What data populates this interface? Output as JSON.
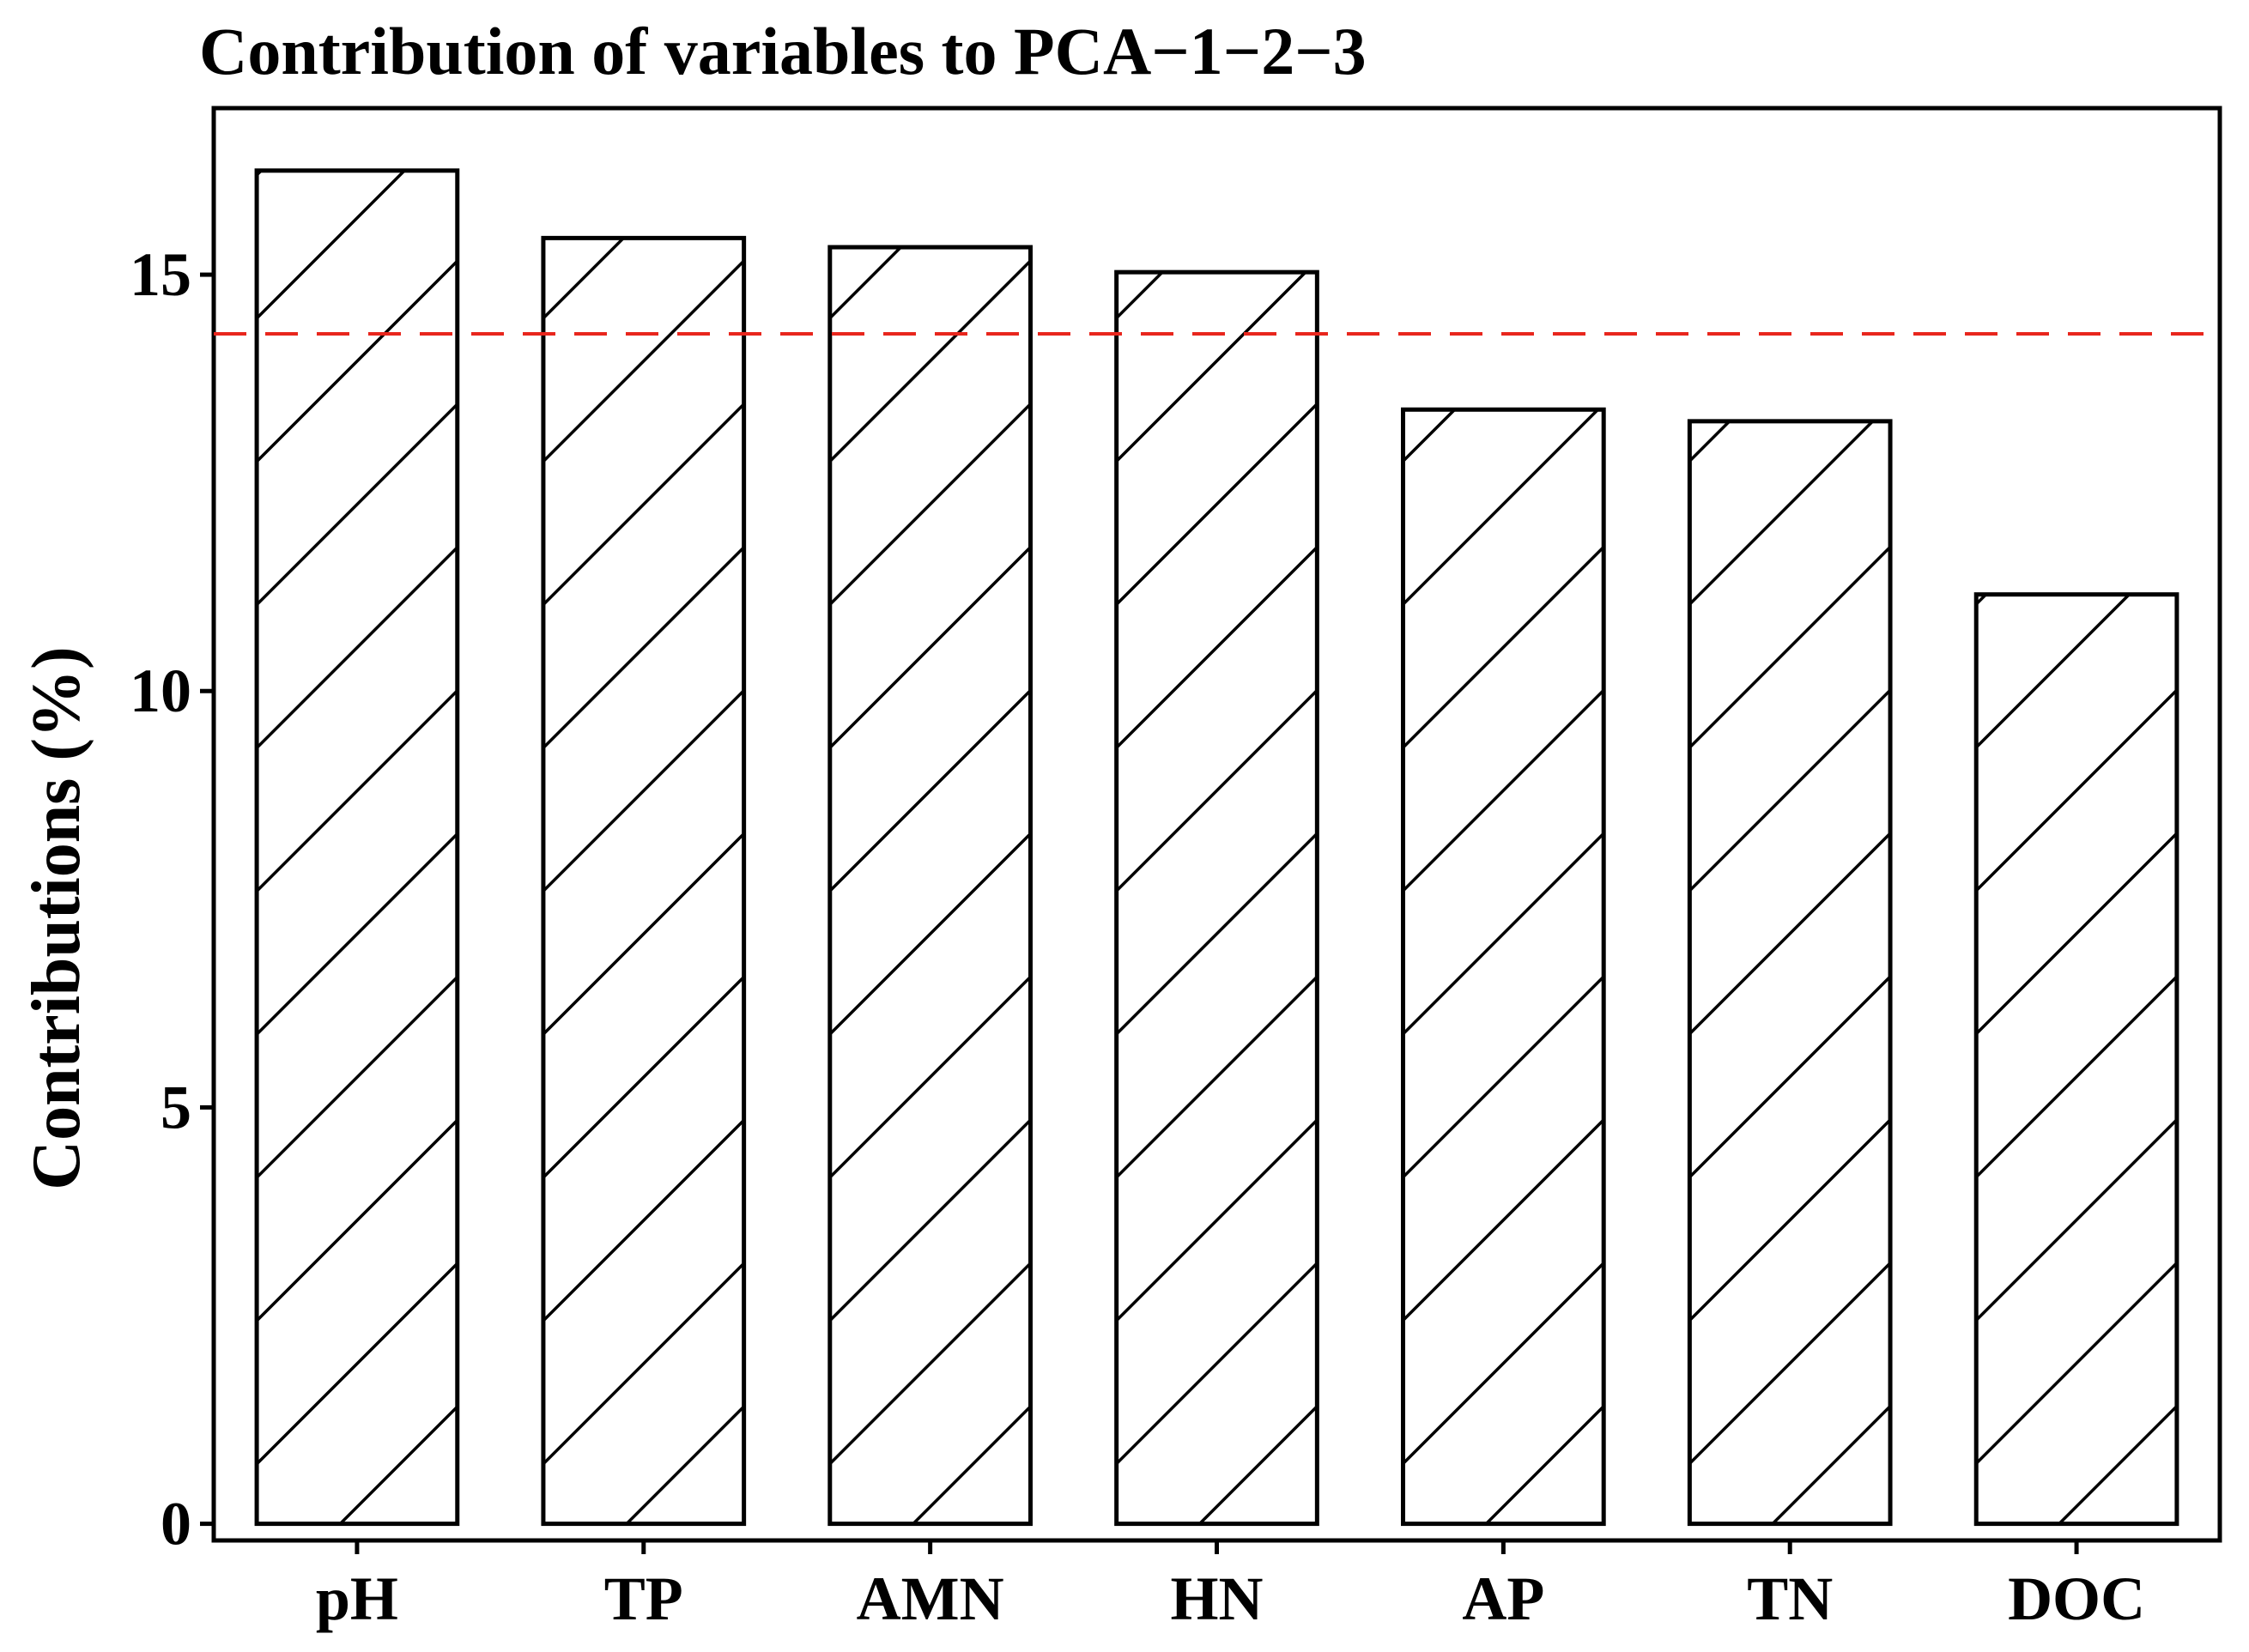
{
  "chart_data": {
    "type": "bar",
    "title": "Contribution of variables to PCA−1−2−3",
    "xlabel": "",
    "ylabel": "Contributions (%)",
    "categories": [
      "pH",
      "TP",
      "AMN",
      "HN",
      "AP",
      "TN",
      "DOC"
    ],
    "values": [
      16.25,
      15.44,
      15.33,
      15.03,
      13.38,
      13.24,
      11.16
    ],
    "ylim": [
      -0.2,
      17.0
    ],
    "yticks": [
      0,
      5,
      10,
      15
    ],
    "ytick_labels": [
      "0",
      "5",
      "10",
      "15"
    ],
    "reference_line": {
      "value": 14.29,
      "style": "dashed",
      "color": "#e8261d"
    },
    "bar_pattern": "diagonal-hatch",
    "bar_color": "#ffffff",
    "edge_color": "#000000",
    "grid": false
  }
}
